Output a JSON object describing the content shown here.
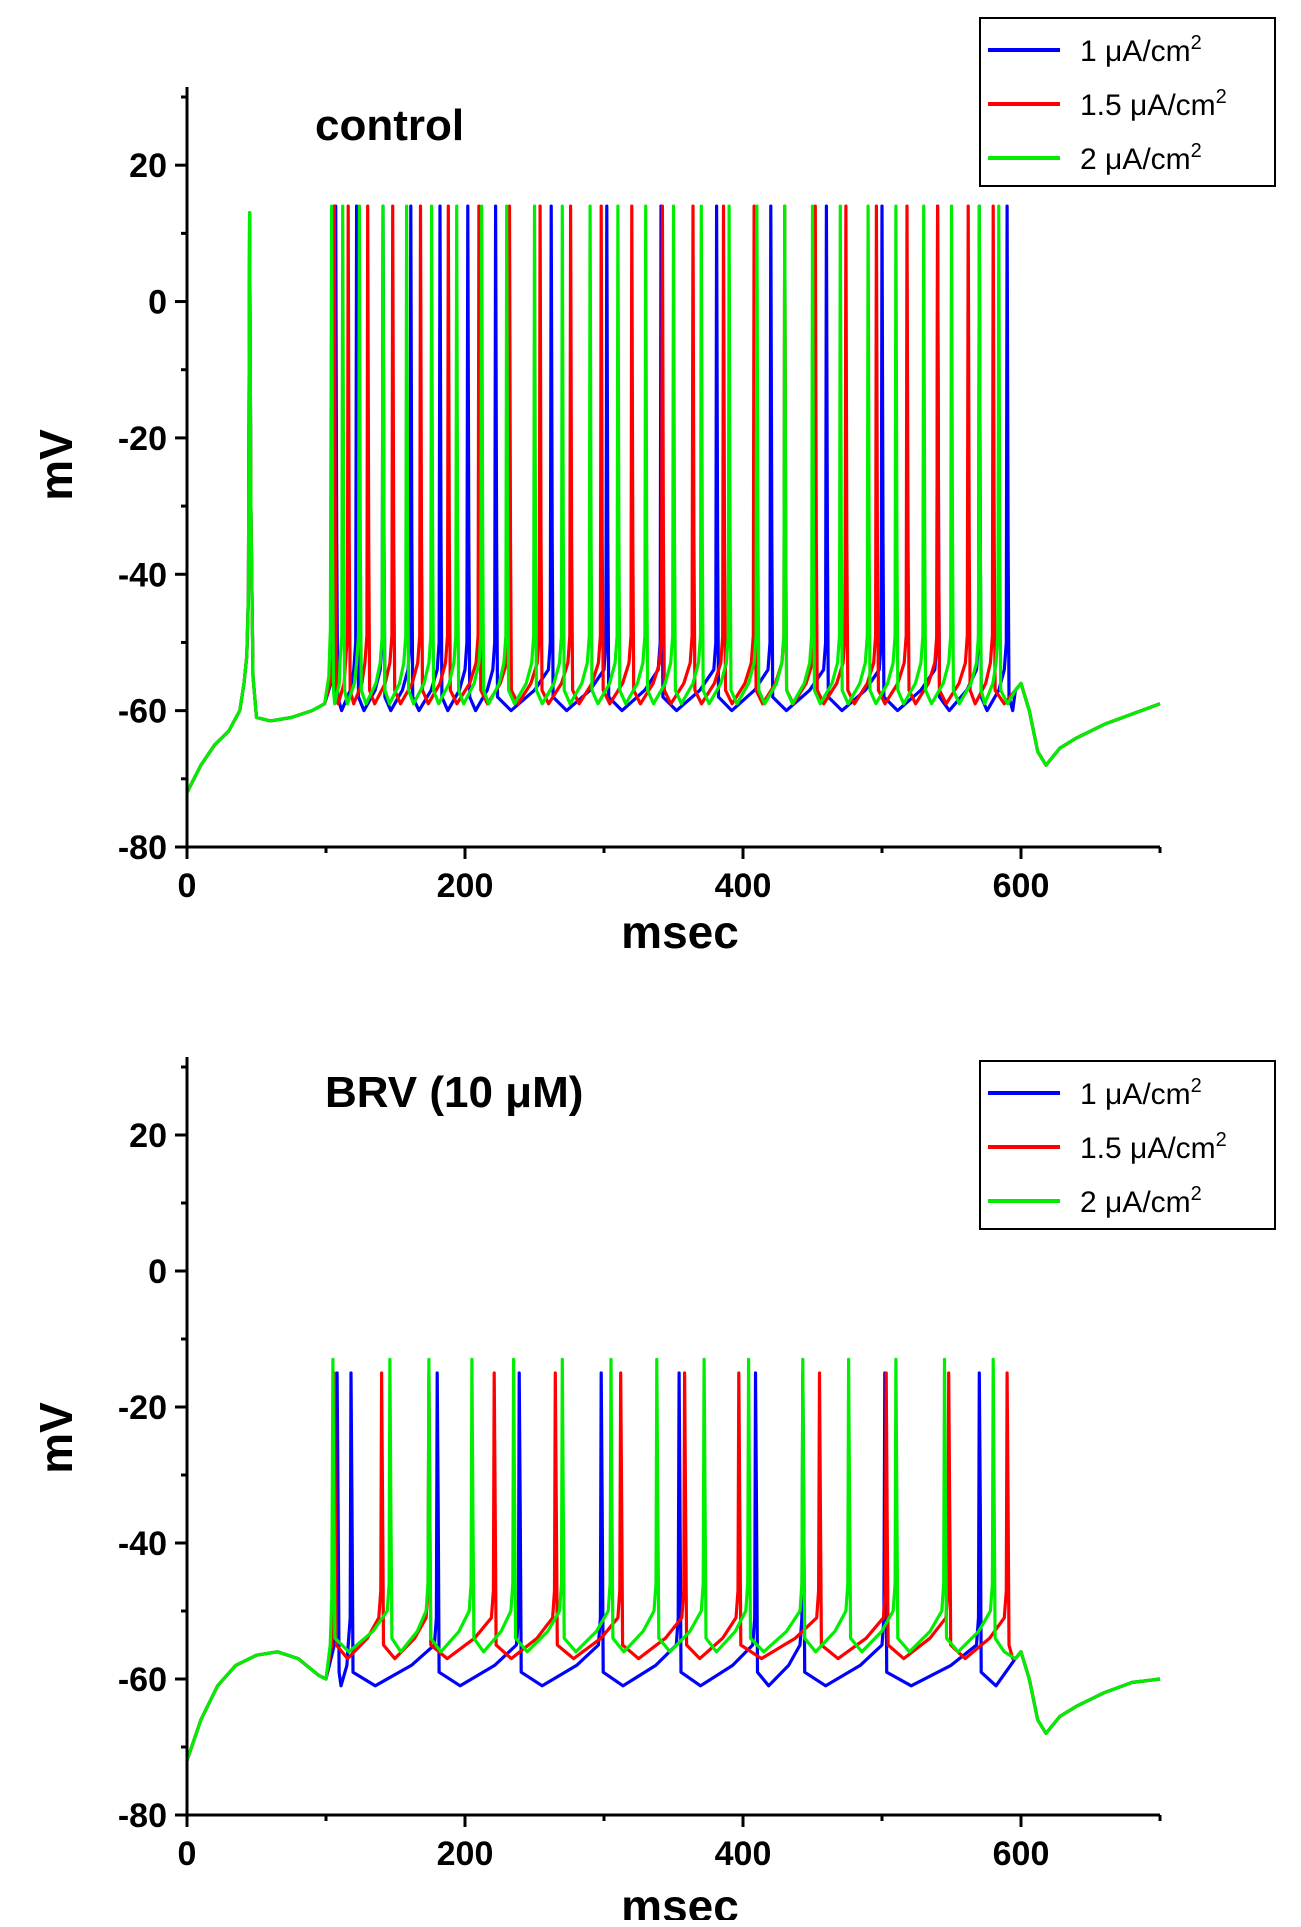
{
  "chart_data": [
    {
      "type": "line",
      "title": "control",
      "xlabel": "msec",
      "ylabel": "mV",
      "xlim": [
        0,
        700
      ],
      "ylim": [
        -80,
        30
      ],
      "xticks": [
        0,
        200,
        400,
        600
      ],
      "xtick_labels": [
        "0",
        "200",
        "400",
        "600"
      ],
      "yticks": [
        -80,
        -60,
        -40,
        -20,
        0,
        20
      ],
      "ytick_labels": [
        "-80",
        "-60",
        "-40",
        "-20",
        "0",
        "20"
      ],
      "legend_position": "top-right",
      "stimulus": {
        "onset": 100,
        "offset": 600
      },
      "pre_spike": {
        "time": 45,
        "peak": 13
      },
      "baseline_pre": -61,
      "baseline_end": -59,
      "afterhyperpolarization": {
        "time": 618,
        "min": -68
      },
      "series": [
        {
          "name": "1 μA/cm²",
          "label_main": "1 μA/cm",
          "label_sup": "2",
          "color": "#0000ff",
          "trough": -60,
          "peak": 14,
          "spike_times": [
            107,
            122,
            141,
            161,
            182,
            202,
            222,
            262,
            302,
            341,
            381,
            420,
            460,
            500,
            540,
            570,
            590
          ]
        },
        {
          "name": "1.5 μA/cm²",
          "label_main": "1.5 μA/cm",
          "label_sup": "2",
          "color": "#ff0000",
          "trough": -59,
          "peak": 14,
          "spike_times": [
            106,
            116,
            130,
            148,
            168,
            188,
            210,
            232,
            254,
            276,
            298,
            320,
            342,
            364,
            386,
            408,
            430,
            452,
            474,
            496,
            518,
            540,
            562,
            580
          ]
        },
        {
          "name": "2 μA/cm²",
          "label_main": "2 μA/cm",
          "label_sup": "2",
          "color": "#00ee00",
          "trough": -59,
          "peak": 14,
          "spike_times": [
            104,
            112,
            124,
            141,
            158,
            176,
            194,
            212,
            230,
            250,
            270,
            290,
            310,
            330,
            350,
            370,
            390,
            410,
            430,
            450,
            470,
            490,
            510,
            530,
            550,
            570,
            584
          ]
        }
      ]
    },
    {
      "type": "line",
      "title": "BRV (10 μM)",
      "xlabel": "msec",
      "ylabel": "mV",
      "xlim": [
        0,
        700
      ],
      "ylim": [
        -80,
        30
      ],
      "xticks": [
        0,
        200,
        400,
        600
      ],
      "xtick_labels": [
        "0",
        "200",
        "400",
        "600"
      ],
      "yticks": [
        -80,
        -60,
        -40,
        -20,
        0,
        20
      ],
      "ytick_labels": [
        "-80",
        "-60",
        "-40",
        "-20",
        "0",
        "20"
      ],
      "legend_position": "top-right",
      "stimulus": {
        "onset": 100,
        "offset": 600
      },
      "pre_hump": {
        "time": 65,
        "peak": -56
      },
      "baseline_end": -60,
      "afterhyperpolarization": {
        "time": 618,
        "min": -68
      },
      "series": [
        {
          "name": "1 μA/cm²",
          "label_main": "1 μA/cm",
          "label_sup": "2",
          "color": "#0000ff",
          "trough": -61,
          "peak": -15,
          "spike_times": [
            108,
            118,
            180,
            239,
            298,
            354,
            409,
            443,
            502,
            570
          ]
        },
        {
          "name": "1.5 μA/cm²",
          "label_main": "1.5 μA/cm",
          "label_sup": "2",
          "color": "#ff0000",
          "trough": -57,
          "peak": -15,
          "spike_times": [
            106,
            140,
            174,
            221,
            265,
            312,
            358,
            397,
            455,
            503,
            548,
            590
          ]
        },
        {
          "name": "2 μA/cm²",
          "label_main": "2 μA/cm",
          "label_sup": "2",
          "color": "#00ee00",
          "trough": -56,
          "peak": -13,
          "spike_times": [
            105,
            146,
            174,
            205,
            235,
            270,
            305,
            338,
            372,
            404,
            443,
            476,
            510,
            545,
            580
          ]
        }
      ]
    }
  ]
}
